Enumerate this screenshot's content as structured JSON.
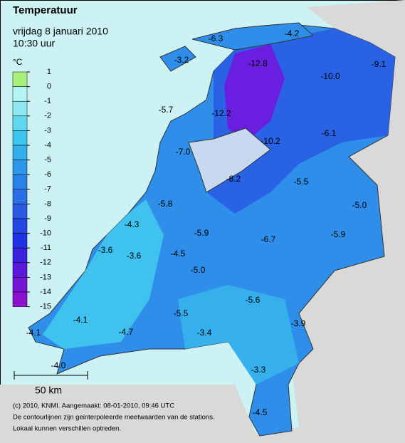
{
  "header": {
    "title": "Temperatuur",
    "date": "vrijdag 8 januari 2010",
    "time": "10:30 uur"
  },
  "legend": {
    "unit": "°C",
    "labels": [
      "1",
      "0",
      "-1",
      "-2",
      "-3",
      "-4",
      "-5",
      "-6",
      "-7",
      "-8",
      "-9",
      "-10",
      "-11",
      "-12",
      "-13",
      "-14",
      "-15"
    ],
    "colors": [
      "#a8f07a",
      "#b6f5f5",
      "#8ee8f2",
      "#5fd8f0",
      "#3ec6ee",
      "#31b0ec",
      "#2d98ea",
      "#2a82e8",
      "#2a6ee6",
      "#2a5ae4",
      "#2646e4",
      "#2032e2",
      "#3a20dc",
      "#5a18d8",
      "#7414d4",
      "#8c10d0"
    ]
  },
  "stations": [
    "-6.3",
    "-4.2",
    "-3.2",
    "-12.8",
    "-9.1",
    "-10.0",
    "-5.7",
    "-12.2",
    "-6.1",
    "-10.2",
    "-7.0",
    "-8.2",
    "-5.5",
    "-5.0",
    "-5.8",
    "-4.3",
    "-5.9",
    "-5.9",
    "-6.7",
    "-3.6",
    "-3.6",
    "-4.5",
    "-5.0",
    "-5.6",
    "-5.5",
    "-4.1",
    "-3.9",
    "-3.4",
    "-4.1",
    "-4.7",
    "-4.0",
    "-3.3",
    "-4.5"
  ],
  "scale_bar": "50 km",
  "footer": [
    "(c) 2010, KNMI. Aangemaakt: 08-01-2010, 09:46 UTC",
    "De contourlijnen zijn geinterpoleerde meetwaarden van de stations.",
    "Lokaal kunnen verschillen optreden."
  ]
}
